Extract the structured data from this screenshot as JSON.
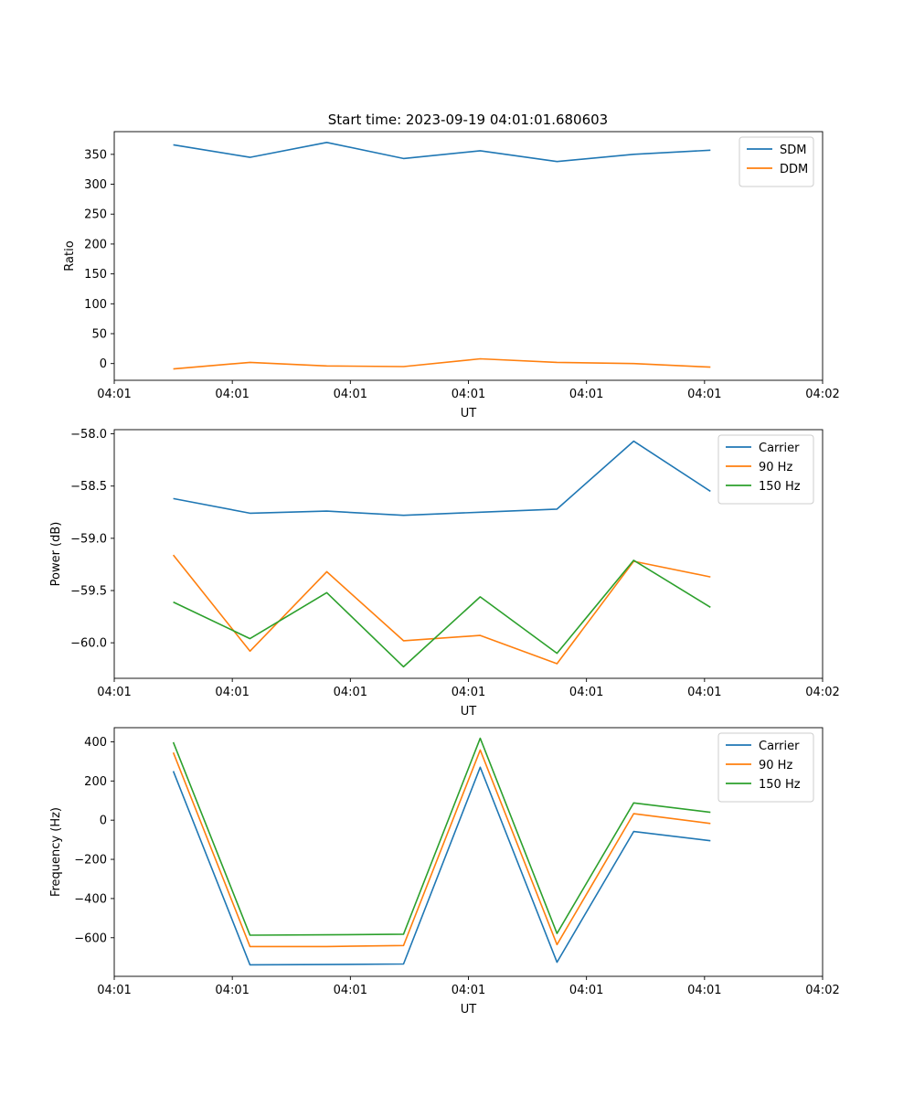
{
  "figure_title": "Start time: 2023-09-19 04:01:01.680603",
  "chart_data": [
    {
      "type": "line",
      "title": "Start time: 2023-09-19 04:01:01.680603",
      "xlabel": "UT",
      "ylabel": "Ratio",
      "xlim": [
        0,
        12
      ],
      "ylim": [
        -28,
        388
      ],
      "x_ticks": [
        0,
        2,
        4,
        6,
        8,
        10,
        12
      ],
      "x_tick_labels": [
        "04:01",
        "04:01",
        "04:01",
        "04:01",
        "04:01",
        "04:01",
        "04:02"
      ],
      "y_ticks": [
        0,
        50,
        100,
        150,
        200,
        250,
        300,
        350
      ],
      "y_tick_labels": [
        "0",
        "50",
        "100",
        "150",
        "200",
        "250",
        "300",
        "350"
      ],
      "grid": false,
      "legend_position": "top-right",
      "x": [
        1,
        2.3,
        3.6,
        4.9,
        6.2,
        7.5,
        8.8,
        10.1
      ],
      "series": [
        {
          "name": "SDM",
          "color": "#1f77b4",
          "values": [
            366,
            345,
            370,
            343,
            356,
            338,
            350,
            357
          ]
        },
        {
          "name": "DDM",
          "color": "#ff7f0e",
          "values": [
            -9,
            2,
            -4,
            -5,
            8,
            2,
            0,
            -6
          ]
        }
      ]
    },
    {
      "type": "line",
      "title": "",
      "xlabel": "UT",
      "ylabel": "Power (dB)",
      "xlim": [
        0,
        12
      ],
      "ylim": [
        -60.34,
        -57.96
      ],
      "x_ticks": [
        0,
        2,
        4,
        6,
        8,
        10,
        12
      ],
      "x_tick_labels": [
        "04:01",
        "04:01",
        "04:01",
        "04:01",
        "04:01",
        "04:01",
        "04:02"
      ],
      "y_ticks": [
        -60.0,
        -59.5,
        -59.0,
        -58.5,
        -58.0
      ],
      "y_tick_labels": [
        "−60.0",
        "−59.5",
        "−59.0",
        "−58.5",
        "−58.0"
      ],
      "grid": false,
      "legend_position": "top-right",
      "x": [
        1,
        2.3,
        3.6,
        4.9,
        6.2,
        7.5,
        8.8,
        10.1
      ],
      "series": [
        {
          "name": "Carrier",
          "color": "#1f77b4",
          "values": [
            -58.62,
            -58.76,
            -58.74,
            -58.78,
            -58.75,
            -58.72,
            -58.07,
            -58.55
          ]
        },
        {
          "name": "90 Hz",
          "color": "#ff7f0e",
          "values": [
            -59.16,
            -60.08,
            -59.32,
            -59.98,
            -59.93,
            -60.2,
            -59.22,
            -59.37
          ]
        },
        {
          "name": "150 Hz",
          "color": "#2ca02c",
          "values": [
            -59.61,
            -59.96,
            -59.52,
            -60.23,
            -59.56,
            -60.1,
            -59.21,
            -59.66
          ]
        }
      ]
    },
    {
      "type": "line",
      "title": "",
      "xlabel": "UT",
      "ylabel": "Frequency (Hz)",
      "xlim": [
        0,
        12
      ],
      "ylim": [
        -797,
        472
      ],
      "x_ticks": [
        0,
        2,
        4,
        6,
        8,
        10,
        12
      ],
      "x_tick_labels": [
        "04:01",
        "04:01",
        "04:01",
        "04:01",
        "04:01",
        "04:01",
        "04:02"
      ],
      "y_ticks": [
        -600,
        -400,
        -200,
        0,
        200,
        400
      ],
      "y_tick_labels": [
        "−600",
        "−400",
        "−200",
        "0",
        "200",
        "400"
      ],
      "grid": false,
      "legend_position": "top-right",
      "x": [
        1,
        2.3,
        3.6,
        4.9,
        6.2,
        7.5,
        8.8,
        10.1
      ],
      "series": [
        {
          "name": "Carrier",
          "color": "#1f77b4",
          "values": [
            250,
            -738,
            -737,
            -734,
            270,
            -725,
            -58,
            -105
          ]
        },
        {
          "name": "90 Hz",
          "color": "#ff7f0e",
          "values": [
            345,
            -645,
            -645,
            -640,
            358,
            -635,
            33,
            -17
          ]
        },
        {
          "name": "150 Hz",
          "color": "#2ca02c",
          "values": [
            398,
            -587,
            -585,
            -582,
            418,
            -578,
            88,
            40
          ]
        }
      ]
    }
  ]
}
